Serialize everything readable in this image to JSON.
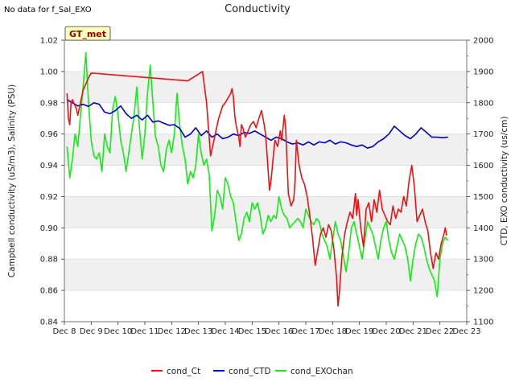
{
  "page": {
    "notice": "No data for f_Sal_EXO",
    "site_badge": "GT_met"
  },
  "chart_data": {
    "type": "line",
    "title": "Conductivity",
    "ylabel_left": "Campbell conductivity (uS/m3), Salinity (PSU)",
    "ylabel_right": "CTD, EXO conductivity (us/cm)",
    "xlabel": "",
    "x_unit": "days since Dec 8",
    "xlim": [
      0,
      15
    ],
    "x_ticks": [
      {
        "x": 0,
        "label": "Dec 8"
      },
      {
        "x": 1,
        "label": "Dec 9"
      },
      {
        "x": 2,
        "label": "Dec 10"
      },
      {
        "x": 3,
        "label": "Dec 11"
      },
      {
        "x": 4,
        "label": "Dec 12"
      },
      {
        "x": 5,
        "label": "Dec 13"
      },
      {
        "x": 6,
        "label": "Dec 14"
      },
      {
        "x": 7,
        "label": "Dec 15"
      },
      {
        "x": 8,
        "label": "Dec 16"
      },
      {
        "x": 9,
        "label": "Dec 17"
      },
      {
        "x": 10,
        "label": "Dec 18"
      },
      {
        "x": 11,
        "label": "Dec 19"
      },
      {
        "x": 12,
        "label": "Dec 20"
      },
      {
        "x": 13,
        "label": "Dec 21"
      },
      {
        "x": 14,
        "label": "Dec 22"
      },
      {
        "x": 15,
        "label": "Dec 23"
      }
    ],
    "ylim_left": [
      0.84,
      1.02
    ],
    "yticks_left": [
      "0.84",
      "0.86",
      "0.88",
      "0.90",
      "0.92",
      "0.94",
      "0.96",
      "0.98",
      "1.00",
      "1.02"
    ],
    "ylim_right": [
      1100,
      2000
    ],
    "yticks_right": [
      "1100",
      "1200",
      "1300",
      "1400",
      "1500",
      "1600",
      "1700",
      "1800",
      "1900",
      "2000"
    ],
    "banding": "alternating grey bands",
    "legend_placement": "bottom-center",
    "colors": {
      "cond_Ct": "#ee1111",
      "cond_CTD": "#0000cc",
      "cond_EXOchan": "#11ee11"
    },
    "series": [
      {
        "name": "cond_Ct",
        "axis": "left",
        "color": "#ee1111",
        "x": [
          0.1,
          0.15,
          0.2,
          0.25,
          0.3,
          0.45,
          0.5,
          0.6,
          0.7,
          0.8,
          0.9,
          1.0,
          4.6,
          5.15,
          5.3,
          5.45,
          5.6,
          5.75,
          5.9,
          6.0,
          6.1,
          6.2,
          6.25,
          6.3,
          6.35,
          6.4,
          6.5,
          6.55,
          6.6,
          6.65,
          6.75,
          6.85,
          6.95,
          7.05,
          7.15,
          7.25,
          7.35,
          7.45,
          7.5,
          7.55,
          7.6,
          7.65,
          7.7,
          7.75,
          7.8,
          7.85,
          7.95,
          8.05,
          8.1,
          8.15,
          8.2,
          8.25,
          8.35,
          8.45,
          8.55,
          8.6,
          8.65,
          8.75,
          8.85,
          8.95,
          9.05,
          9.15,
          9.25,
          9.35,
          9.45,
          9.55,
          9.65,
          9.75,
          9.85,
          9.95,
          10.05,
          10.15,
          10.2,
          10.25,
          10.3,
          10.35,
          10.45,
          10.55,
          10.65,
          10.75,
          10.8,
          10.85,
          10.9,
          10.95,
          11.05,
          11.15,
          11.25,
          11.35,
          11.45,
          11.55,
          11.65,
          11.75,
          11.85,
          11.95,
          12.05,
          12.15,
          12.25,
          12.35,
          12.45,
          12.55,
          12.65,
          12.75,
          12.85,
          12.95,
          13.05,
          13.15,
          13.25,
          13.35,
          13.45,
          13.55,
          13.65,
          13.75,
          13.85,
          13.95,
          14.05,
          14.15,
          14.2,
          14.25
        ],
        "values": [
          0.986,
          0.97,
          0.966,
          0.98,
          0.982,
          0.976,
          0.972,
          0.98,
          0.988,
          0.992,
          0.996,
          0.999,
          0.994,
          1.0,
          0.98,
          0.946,
          0.958,
          0.97,
          0.978,
          0.98,
          0.983,
          0.986,
          0.989,
          0.984,
          0.972,
          0.966,
          0.958,
          0.952,
          0.966,
          0.964,
          0.958,
          0.962,
          0.966,
          0.968,
          0.964,
          0.97,
          0.975,
          0.966,
          0.96,
          0.948,
          0.936,
          0.924,
          0.93,
          0.938,
          0.948,
          0.956,
          0.952,
          0.962,
          0.956,
          0.964,
          0.972,
          0.964,
          0.922,
          0.914,
          0.918,
          0.93,
          0.956,
          0.94,
          0.932,
          0.928,
          0.92,
          0.908,
          0.894,
          0.876,
          0.886,
          0.896,
          0.9,
          0.894,
          0.902,
          0.898,
          0.886,
          0.868,
          0.85,
          0.858,
          0.87,
          0.882,
          0.896,
          0.904,
          0.91,
          0.906,
          0.914,
          0.922,
          0.908,
          0.918,
          0.9,
          0.888,
          0.912,
          0.916,
          0.904,
          0.918,
          0.91,
          0.924,
          0.912,
          0.908,
          0.904,
          0.902,
          0.914,
          0.906,
          0.912,
          0.91,
          0.92,
          0.914,
          0.93,
          0.94,
          0.926,
          0.904,
          0.908,
          0.912,
          0.904,
          0.898,
          0.884,
          0.874,
          0.884,
          0.88,
          0.89,
          0.896,
          0.9,
          0.895
        ]
      },
      {
        "name": "cond_CTD",
        "axis": "right",
        "color": "#0000cc",
        "x": [
          0.1,
          0.3,
          0.5,
          0.7,
          0.9,
          1.1,
          1.3,
          1.5,
          1.7,
          1.9,
          2.1,
          2.3,
          2.5,
          2.7,
          2.9,
          3.1,
          3.3,
          3.5,
          3.7,
          3.9,
          4.1,
          4.3,
          4.5,
          4.7,
          4.9,
          5.1,
          5.3,
          5.5,
          5.7,
          5.9,
          6.1,
          6.3,
          6.5,
          6.7,
          6.9,
          7.1,
          7.3,
          7.5,
          7.7,
          7.9,
          8.1,
          8.3,
          8.5,
          8.7,
          8.9,
          9.1,
          9.3,
          9.5,
          9.7,
          9.9,
          10.1,
          10.3,
          10.5,
          10.7,
          10.9,
          11.1,
          11.3,
          11.5,
          11.7,
          11.9,
          12.1,
          12.3,
          12.5,
          12.7,
          12.9,
          13.1,
          13.3,
          13.5,
          13.7,
          13.9,
          14.1,
          14.3
        ],
        "values": [
          1810,
          1800,
          1790,
          1795,
          1788,
          1800,
          1795,
          1770,
          1765,
          1775,
          1790,
          1765,
          1750,
          1760,
          1745,
          1760,
          1738,
          1742,
          1735,
          1728,
          1730,
          1718,
          1690,
          1700,
          1720,
          1695,
          1710,
          1690,
          1700,
          1685,
          1690,
          1700,
          1695,
          1705,
          1702,
          1710,
          1700,
          1690,
          1680,
          1690,
          1685,
          1675,
          1668,
          1672,
          1665,
          1675,
          1665,
          1675,
          1672,
          1680,
          1668,
          1675,
          1672,
          1665,
          1660,
          1665,
          1655,
          1660,
          1675,
          1685,
          1700,
          1725,
          1710,
          1695,
          1685,
          1700,
          1720,
          1705,
          1690,
          1690,
          1688,
          1690
        ]
      },
      {
        "name": "cond_EXOchan",
        "axis": "right",
        "color": "#11ee11",
        "x": [
          0.1,
          0.2,
          0.3,
          0.4,
          0.5,
          0.6,
          0.7,
          0.8,
          0.9,
          1.0,
          1.1,
          1.2,
          1.3,
          1.4,
          1.5,
          1.6,
          1.7,
          1.8,
          1.9,
          2.0,
          2.1,
          2.2,
          2.3,
          2.4,
          2.5,
          2.6,
          2.7,
          2.8,
          2.9,
          3.0,
          3.1,
          3.2,
          3.3,
          3.4,
          3.5,
          3.6,
          3.7,
          3.8,
          3.9,
          4.0,
          4.1,
          4.2,
          4.3,
          4.4,
          4.5,
          4.6,
          4.7,
          4.8,
          4.9,
          5.0,
          5.1,
          5.2,
          5.3,
          5.4,
          5.5,
          5.6,
          5.7,
          5.8,
          5.9,
          6.0,
          6.1,
          6.2,
          6.3,
          6.4,
          6.5,
          6.6,
          6.7,
          6.8,
          6.9,
          7.0,
          7.1,
          7.2,
          7.3,
          7.4,
          7.5,
          7.6,
          7.7,
          7.8,
          7.9,
          8.0,
          8.1,
          8.2,
          8.3,
          8.4,
          8.5,
          8.6,
          8.7,
          8.8,
          8.9,
          9.0,
          9.1,
          9.2,
          9.3,
          9.4,
          9.5,
          9.6,
          9.7,
          9.8,
          9.9,
          10.0,
          10.1,
          10.2,
          10.3,
          10.4,
          10.5,
          10.6,
          10.7,
          10.8,
          10.9,
          11.0,
          11.1,
          11.2,
          11.3,
          11.4,
          11.5,
          11.6,
          11.7,
          11.8,
          11.9,
          12.0,
          12.1,
          12.2,
          12.3,
          12.4,
          12.5,
          12.6,
          12.7,
          12.8,
          12.9,
          13.0,
          13.1,
          13.2,
          13.3,
          13.4,
          13.5,
          13.6,
          13.7,
          13.8,
          13.9,
          14.0,
          14.1,
          14.2,
          14.3
        ],
        "values": [
          1660,
          1560,
          1620,
          1700,
          1660,
          1760,
          1850,
          1960,
          1800,
          1680,
          1630,
          1620,
          1640,
          1580,
          1700,
          1660,
          1640,
          1780,
          1820,
          1760,
          1680,
          1640,
          1580,
          1640,
          1700,
          1760,
          1850,
          1720,
          1620,
          1700,
          1830,
          1920,
          1800,
          1690,
          1660,
          1600,
          1580,
          1650,
          1680,
          1640,
          1700,
          1830,
          1730,
          1660,
          1620,
          1540,
          1580,
          1560,
          1600,
          1700,
          1640,
          1600,
          1620,
          1570,
          1390,
          1440,
          1520,
          1500,
          1460,
          1560,
          1540,
          1500,
          1480,
          1420,
          1360,
          1380,
          1430,
          1450,
          1420,
          1480,
          1460,
          1480,
          1440,
          1380,
          1400,
          1440,
          1420,
          1440,
          1430,
          1500,
          1460,
          1440,
          1430,
          1400,
          1410,
          1420,
          1430,
          1420,
          1400,
          1460,
          1440,
          1420,
          1410,
          1430,
          1420,
          1380,
          1360,
          1340,
          1300,
          1360,
          1420,
          1380,
          1360,
          1310,
          1260,
          1320,
          1400,
          1420,
          1380,
          1340,
          1300,
          1360,
          1420,
          1400,
          1380,
          1340,
          1300,
          1360,
          1400,
          1420,
          1360,
          1320,
          1300,
          1340,
          1380,
          1360,
          1340,
          1300,
          1230,
          1300,
          1350,
          1380,
          1370,
          1340,
          1300,
          1270,
          1250,
          1230,
          1180,
          1300,
          1350,
          1370,
          1360
        ]
      }
    ]
  }
}
